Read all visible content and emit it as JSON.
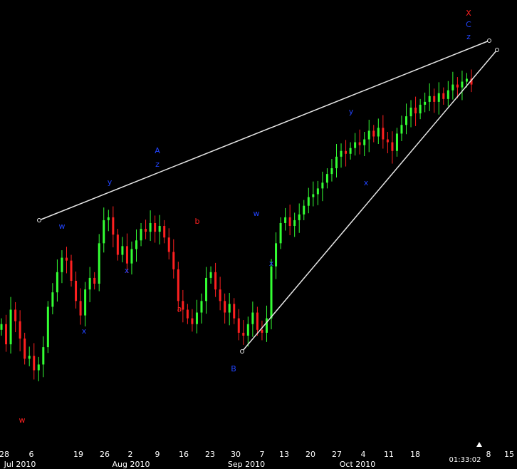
{
  "chart_data": {
    "type": "candlestick",
    "title": "",
    "x_ticks": [
      "28",
      "6",
      "19",
      "26",
      "2",
      "9",
      "16",
      "23",
      "30",
      "7",
      "13",
      "20",
      "27",
      "4",
      "11",
      "18",
      "8",
      "15"
    ],
    "x_month_labels": [
      "Jul 2010",
      "Aug 2010",
      "Sep 2010",
      "Oct 2010"
    ],
    "time_readout": "01:33:02",
    "colors": {
      "background": "#000000",
      "up_bar": "#33ff33",
      "down_bar": "#ff2020",
      "trendline": "#e6e6e6",
      "wave_blue": "#2244ff",
      "wave_red": "#ff2020",
      "text": "#ffffff"
    },
    "wave_labels": [
      {
        "text": "w",
        "color": "red"
      },
      {
        "text": "w",
        "color": "blue"
      },
      {
        "text": "x",
        "color": "blue"
      },
      {
        "text": "y",
        "color": "blue"
      },
      {
        "text": "x",
        "color": "blue"
      },
      {
        "text": "z",
        "color": "blue"
      },
      {
        "text": "A",
        "color": "blue"
      },
      {
        "text": "a",
        "color": "red"
      },
      {
        "text": "b",
        "color": "red"
      },
      {
        "text": "B",
        "color": "blue"
      },
      {
        "text": "w",
        "color": "blue"
      },
      {
        "text": "x",
        "color": "blue"
      },
      {
        "text": "y",
        "color": "blue"
      },
      {
        "text": "x",
        "color": "blue"
      },
      {
        "text": "z",
        "color": "blue"
      },
      {
        "text": "C",
        "color": "blue"
      },
      {
        "text": "X",
        "color": "red"
      }
    ],
    "trendlines": [
      "upper",
      "lower"
    ],
    "close_series": [
      50,
      43,
      55,
      51,
      45,
      38,
      39,
      34,
      36,
      42,
      56,
      61,
      68,
      73,
      72,
      65,
      58,
      53,
      62,
      66,
      64,
      78,
      86,
      87,
      81,
      74,
      77,
      71,
      76,
      79,
      83,
      82,
      85,
      82,
      84,
      80,
      75,
      69,
      58,
      55,
      52,
      50,
      54,
      58,
      66,
      68,
      62,
      58,
      54,
      57,
      52,
      47,
      46,
      50,
      54,
      48,
      47,
      52,
      70,
      78,
      85,
      87,
      84,
      86,
      88,
      91,
      94,
      95,
      97,
      99,
      102,
      104,
      108,
      110,
      109,
      111,
      113,
      112,
      114,
      117,
      115,
      118,
      114,
      113,
      110,
      116,
      119,
      122,
      125,
      123,
      126,
      127,
      129,
      127,
      130,
      128,
      131,
      133,
      132,
      134,
      135,
      133
    ]
  }
}
